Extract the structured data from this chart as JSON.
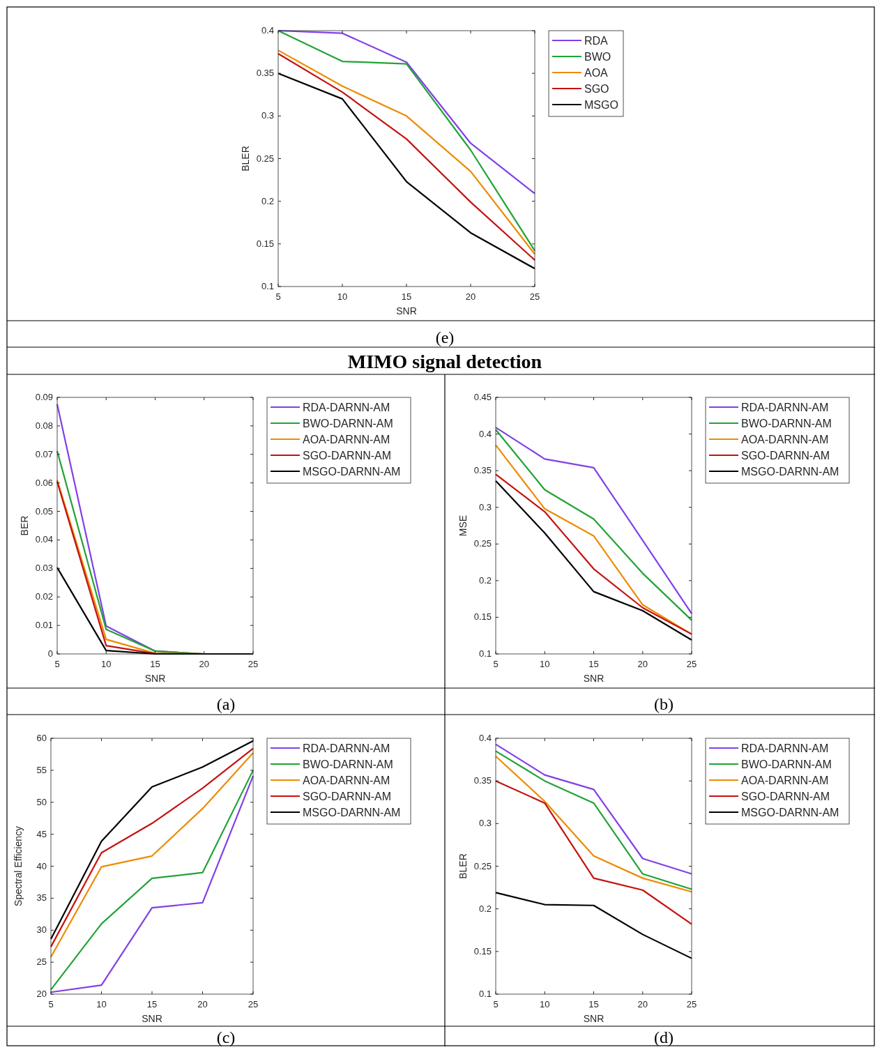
{
  "chart_data": [
    {
      "type": "line",
      "xlabel": "SNR",
      "ylabel": "BLER",
      "x": [
        5,
        10,
        15,
        20,
        25
      ],
      "xlim": [
        5,
        25
      ],
      "xticks": [
        5,
        10,
        15,
        20,
        25
      ],
      "ylim": [
        0.1,
        0.4
      ],
      "yticks": [
        0.1,
        0.15,
        0.2,
        0.25,
        0.3,
        0.35,
        0.4
      ],
      "legend": "top right",
      "grid": false,
      "marker": "none",
      "line_style": "solid",
      "annotations": [
        "(e)",
        "MIMO signal detection"
      ],
      "series": [
        {
          "name": "RDA",
          "color": "#8040e6",
          "values": [
            0.4,
            0.397,
            0.363,
            0.268,
            0.209
          ]
        },
        {
          "name": "BWO",
          "color": "#21a336",
          "values": [
            0.4,
            0.364,
            0.361,
            0.26,
            0.142
          ]
        },
        {
          "name": "AOA",
          "color": "#ed8b00",
          "values": [
            0.377,
            0.335,
            0.3,
            0.235,
            0.138
          ]
        },
        {
          "name": "SGO",
          "color": "#c4120f",
          "values": [
            0.373,
            0.328,
            0.273,
            0.199,
            0.131
          ]
        },
        {
          "name": "MSGO",
          "color": "#000000",
          "values": [
            0.35,
            0.32,
            0.223,
            0.163,
            0.121
          ]
        }
      ]
    },
    {
      "type": "line",
      "xlabel": "SNR",
      "ylabel": "BER",
      "x": [
        5,
        10,
        15,
        20,
        25
      ],
      "xlim": [
        5,
        25
      ],
      "xticks": [
        5,
        10,
        15,
        20,
        25
      ],
      "ylim": [
        0,
        0.09
      ],
      "yticks": [
        0,
        0.01,
        0.02,
        0.03,
        0.04,
        0.05,
        0.06,
        0.07,
        0.08,
        0.09
      ],
      "legend": "top right",
      "grid": false,
      "marker": "none",
      "line_style": "solid",
      "annotations": [
        "(a)"
      ],
      "series": [
        {
          "name": "RDA-DARNN-AM",
          "color": "#8040e6",
          "values": [
            0.0876,
            0.0098,
            0.001,
            0,
            0
          ]
        },
        {
          "name": "BWO-DARNN-AM",
          "color": "#21a336",
          "values": [
            0.0712,
            0.0086,
            0.001,
            0,
            0
          ]
        },
        {
          "name": "AOA-DARNN-AM",
          "color": "#ed8b00",
          "values": [
            0.061,
            0.0051,
            0.0002,
            0,
            0
          ]
        },
        {
          "name": "SGO-DARNN-AM",
          "color": "#c4120f",
          "values": [
            0.0604,
            0.0029,
            0.0001,
            0,
            0
          ]
        },
        {
          "name": "MSGO-DARNN-AM",
          "color": "#000000",
          "values": [
            0.0303,
            0.0012,
            0,
            0,
            0
          ]
        }
      ]
    },
    {
      "type": "line",
      "xlabel": "SNR",
      "ylabel": "MSE",
      "x": [
        5,
        10,
        15,
        20,
        25
      ],
      "xlim": [
        5,
        25
      ],
      "xticks": [
        5,
        10,
        15,
        20,
        25
      ],
      "ylim": [
        0.1,
        0.45
      ],
      "yticks": [
        0.1,
        0.15,
        0.2,
        0.25,
        0.3,
        0.35,
        0.4,
        0.45
      ],
      "legend": "top right",
      "grid": false,
      "marker": "none",
      "line_style": "solid",
      "annotations": [
        "(b)"
      ],
      "series": [
        {
          "name": "RDA-DARNN-AM",
          "color": "#8040e6",
          "values": [
            0.409,
            0.366,
            0.354,
            0.255,
            0.155
          ]
        },
        {
          "name": "BWO-DARNN-AM",
          "color": "#21a336",
          "values": [
            0.406,
            0.324,
            0.284,
            0.21,
            0.146
          ]
        },
        {
          "name": "AOA-DARNN-AM",
          "color": "#ed8b00",
          "values": [
            0.385,
            0.298,
            0.261,
            0.167,
            0.127
          ]
        },
        {
          "name": "SGO-DARNN-AM",
          "color": "#c4120f",
          "values": [
            0.345,
            0.294,
            0.216,
            0.163,
            0.127
          ]
        },
        {
          "name": "MSGO-DARNN-AM",
          "color": "#000000",
          "values": [
            0.336,
            0.265,
            0.185,
            0.159,
            0.119
          ]
        }
      ]
    },
    {
      "type": "line",
      "xlabel": "SNR",
      "ylabel": "Spectral Efficiency",
      "x": [
        5,
        10,
        15,
        20,
        25
      ],
      "xlim": [
        5,
        25
      ],
      "xticks": [
        5,
        10,
        15,
        20,
        25
      ],
      "ylim": [
        20,
        60
      ],
      "yticks": [
        20,
        25,
        30,
        35,
        40,
        45,
        50,
        55,
        60
      ],
      "legend": "top right",
      "grid": false,
      "marker": "none",
      "line_style": "solid",
      "annotations": [
        "(c)"
      ],
      "series": [
        {
          "name": "RDA-DARNN-AM",
          "color": "#8040e6",
          "values": [
            20.3,
            21.4,
            33.5,
            34.3,
            54.1
          ]
        },
        {
          "name": "BWO-DARNN-AM",
          "color": "#21a336",
          "values": [
            20.7,
            31,
            38.1,
            39,
            55
          ]
        },
        {
          "name": "AOA-DARNN-AM",
          "color": "#ed8b00",
          "values": [
            25.8,
            39.9,
            41.6,
            49,
            57.7
          ]
        },
        {
          "name": "SGO-DARNN-AM",
          "color": "#c4120f",
          "values": [
            27.4,
            42.1,
            46.7,
            52.2,
            58.4
          ]
        },
        {
          "name": "MSGO-DARNN-AM",
          "color": "#000000",
          "values": [
            28.6,
            43.9,
            52.4,
            55.5,
            59.6
          ]
        }
      ]
    },
    {
      "type": "line",
      "xlabel": "SNR",
      "ylabel": "BLER",
      "x": [
        5,
        10,
        15,
        20,
        25
      ],
      "xlim": [
        5,
        25
      ],
      "xticks": [
        5,
        10,
        15,
        20,
        25
      ],
      "ylim": [
        0.1,
        0.4
      ],
      "yticks": [
        0.1,
        0.15,
        0.2,
        0.25,
        0.3,
        0.35,
        0.4
      ],
      "legend": "top right",
      "grid": false,
      "marker": "none",
      "line_style": "solid",
      "annotations": [
        "(d)"
      ],
      "series": [
        {
          "name": "RDA-DARNN-AM",
          "color": "#8040e6",
          "values": [
            0.393,
            0.357,
            0.34,
            0.259,
            0.241
          ]
        },
        {
          "name": "BWO-DARNN-AM",
          "color": "#21a336",
          "values": [
            0.385,
            0.35,
            0.324,
            0.241,
            0.223
          ]
        },
        {
          "name": "AOA-DARNN-AM",
          "color": "#ed8b00",
          "values": [
            0.379,
            0.326,
            0.262,
            0.236,
            0.22
          ]
        },
        {
          "name": "SGO-DARNN-AM",
          "color": "#c4120f",
          "values": [
            0.35,
            0.324,
            0.236,
            0.222,
            0.182
          ]
        },
        {
          "name": "MSGO-DARNN-AM",
          "color": "#000000",
          "values": [
            0.219,
            0.205,
            0.204,
            0.17,
            0.142
          ]
        }
      ]
    }
  ]
}
